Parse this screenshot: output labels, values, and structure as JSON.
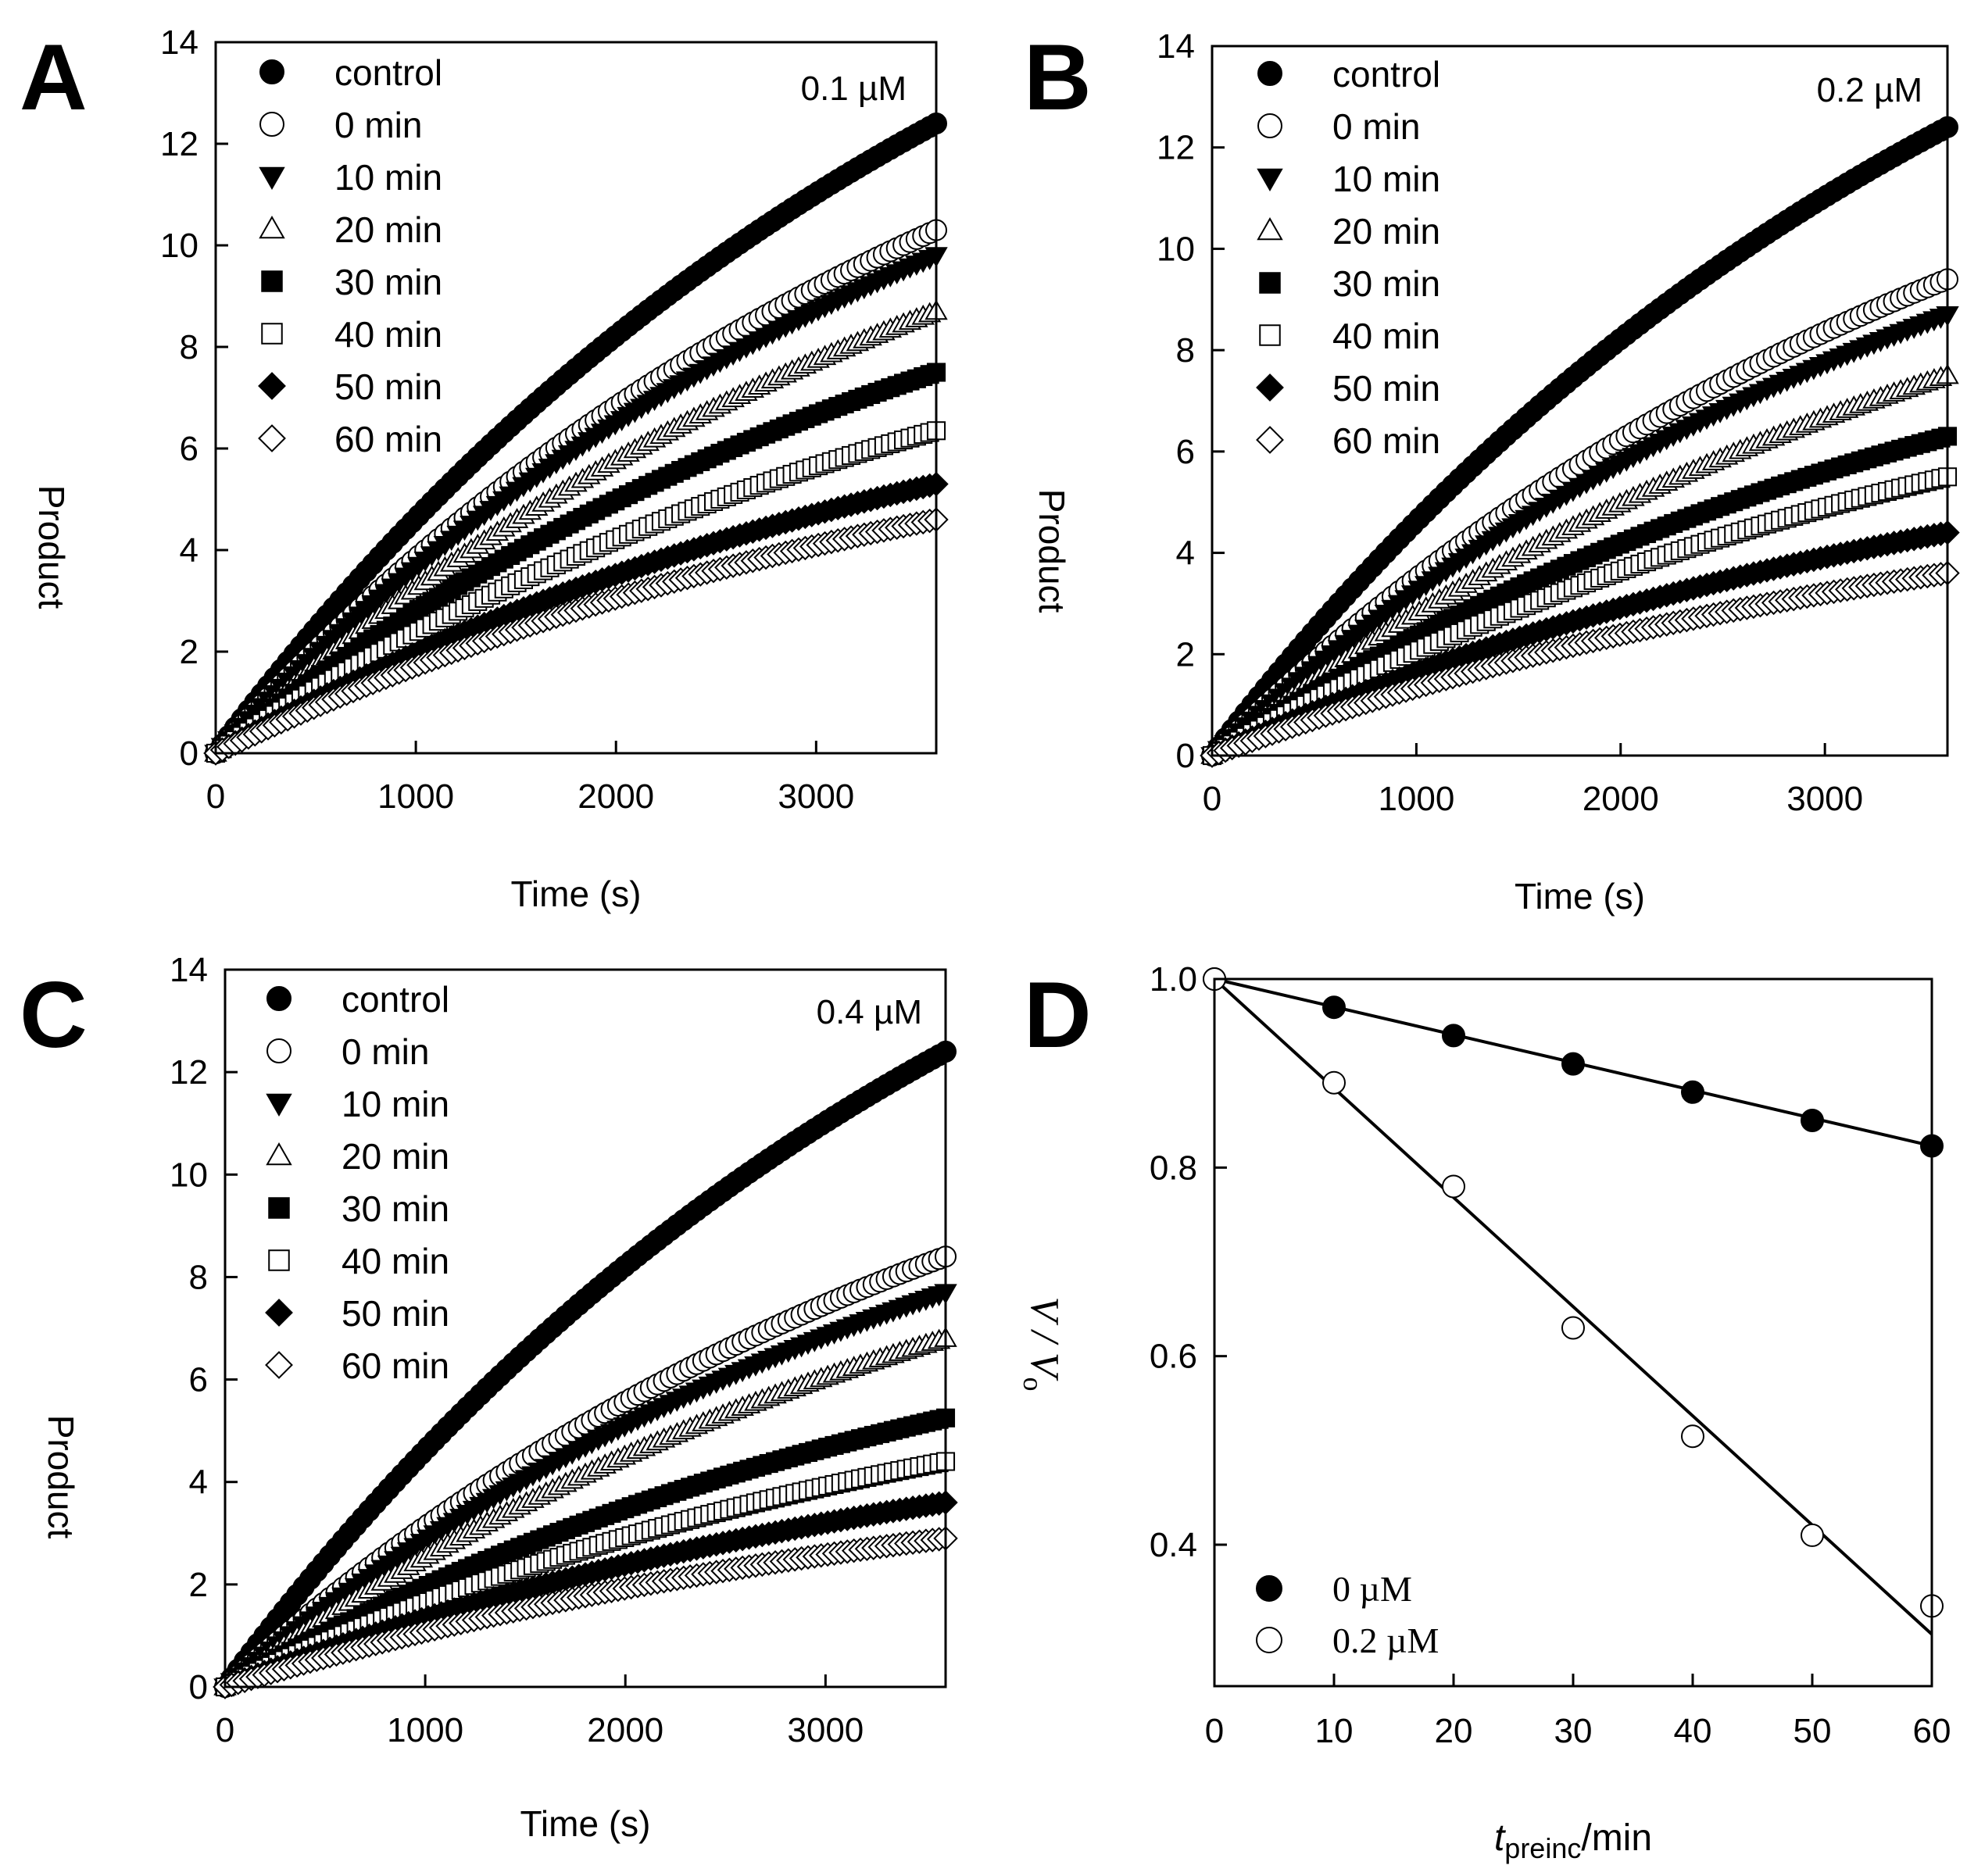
{
  "chart_data": [
    {
      "panel": "A",
      "type": "scatter",
      "concentration_label": "0.1 µM",
      "xlabel": "Time (s)",
      "ylabel": "Product",
      "xlim": [
        0,
        3600
      ],
      "ylim": [
        0,
        14
      ],
      "xticks": [
        "0",
        "1000",
        "2000",
        "3000"
      ],
      "yticks": [
        "0",
        "2",
        "4",
        "6",
        "8",
        "10",
        "12",
        "14"
      ],
      "legend_position": "top-left",
      "series": [
        {
          "name": "control",
          "marker": "circle",
          "filled": true,
          "end_value": 12.4
        },
        {
          "name": "0 min",
          "marker": "circle",
          "filled": false,
          "end_value": 10.3
        },
        {
          "name": "10 min",
          "marker": "triangle-down",
          "filled": true,
          "end_value": 9.8
        },
        {
          "name": "20 min",
          "marker": "triangle-up",
          "filled": false,
          "end_value": 8.7
        },
        {
          "name": "30 min",
          "marker": "square",
          "filled": true,
          "end_value": 7.5
        },
        {
          "name": "40 min",
          "marker": "square",
          "filled": false,
          "end_value": 6.35
        },
        {
          "name": "50 min",
          "marker": "diamond",
          "filled": true,
          "end_value": 5.3
        },
        {
          "name": "60 min",
          "marker": "diamond",
          "filled": false,
          "end_value": 4.6
        }
      ]
    },
    {
      "panel": "B",
      "type": "scatter",
      "concentration_label": "0.2 µM",
      "xlabel": "Time (s)",
      "ylabel": "Product",
      "xlim": [
        0,
        3600
      ],
      "ylim": [
        0,
        14
      ],
      "xticks": [
        "0",
        "1000",
        "2000",
        "3000"
      ],
      "yticks": [
        "0",
        "2",
        "4",
        "6",
        "8",
        "10",
        "12",
        "14"
      ],
      "legend_position": "top-left",
      "series": [
        {
          "name": "control",
          "marker": "circle",
          "filled": true,
          "end_value": 12.4
        },
        {
          "name": "0 min",
          "marker": "circle",
          "filled": false,
          "end_value": 9.4
        },
        {
          "name": "10 min",
          "marker": "triangle-down",
          "filled": true,
          "end_value": 8.7
        },
        {
          "name": "20 min",
          "marker": "triangle-up",
          "filled": false,
          "end_value": 7.5
        },
        {
          "name": "30 min",
          "marker": "square",
          "filled": true,
          "end_value": 6.3
        },
        {
          "name": "40 min",
          "marker": "square",
          "filled": false,
          "end_value": 5.5
        },
        {
          "name": "50 min",
          "marker": "diamond",
          "filled": true,
          "end_value": 4.4
        },
        {
          "name": "60 min",
          "marker": "diamond",
          "filled": false,
          "end_value": 3.6
        }
      ]
    },
    {
      "panel": "C",
      "type": "scatter",
      "concentration_label": "0.4 µM",
      "xlabel": "Time (s)",
      "ylabel": "Product",
      "xlim": [
        0,
        3600
      ],
      "ylim": [
        0,
        14
      ],
      "xticks": [
        "0",
        "1000",
        "2000",
        "3000"
      ],
      "yticks": [
        "0",
        "2",
        "4",
        "6",
        "8",
        "10",
        "12",
        "14"
      ],
      "legend_position": "top-left",
      "series": [
        {
          "name": "control",
          "marker": "circle",
          "filled": true,
          "end_value": 12.4
        },
        {
          "name": "0 min",
          "marker": "circle",
          "filled": false,
          "end_value": 8.4
        },
        {
          "name": "10 min",
          "marker": "triangle-down",
          "filled": true,
          "end_value": 7.7
        },
        {
          "name": "20 min",
          "marker": "triangle-up",
          "filled": false,
          "end_value": 6.8
        },
        {
          "name": "30 min",
          "marker": "square",
          "filled": true,
          "end_value": 5.25
        },
        {
          "name": "40 min",
          "marker": "square",
          "filled": false,
          "end_value": 4.4
        },
        {
          "name": "50 min",
          "marker": "diamond",
          "filled": true,
          "end_value": 3.6
        },
        {
          "name": "60 min",
          "marker": "diamond",
          "filled": false,
          "end_value": 2.9
        }
      ]
    },
    {
      "panel": "D",
      "type": "scatter",
      "xlabel_main": "t",
      "xlabel_sub": "preinc",
      "xlabel_rest": "/min",
      "ylabel": "V / V",
      "ylabel_sub": "o",
      "xlim": [
        0,
        60
      ],
      "ylim": [
        0.25,
        1.0
      ],
      "xticks": [
        "0",
        "10",
        "20",
        "30",
        "40",
        "50",
        "60"
      ],
      "yticks": [
        "0.4",
        "0.6",
        "0.8",
        "1.0"
      ],
      "legend_position": "bottom-left",
      "series": [
        {
          "name": "0 µM",
          "marker": "circle",
          "filled": true,
          "x": [
            0,
            10,
            20,
            30,
            40,
            50,
            60
          ],
          "y": [
            1.0,
            0.97,
            0.94,
            0.91,
            0.88,
            0.85,
            0.823
          ],
          "fit": [
            1.0,
            0.823
          ]
        },
        {
          "name": "0.2 µM",
          "marker": "circle",
          "filled": false,
          "x": [
            0,
            10,
            20,
            30,
            40,
            50,
            60
          ],
          "y": [
            1.0,
            0.89,
            0.78,
            0.63,
            0.515,
            0.41,
            0.335
          ],
          "fit": [
            1.0,
            0.305
          ]
        }
      ]
    }
  ]
}
